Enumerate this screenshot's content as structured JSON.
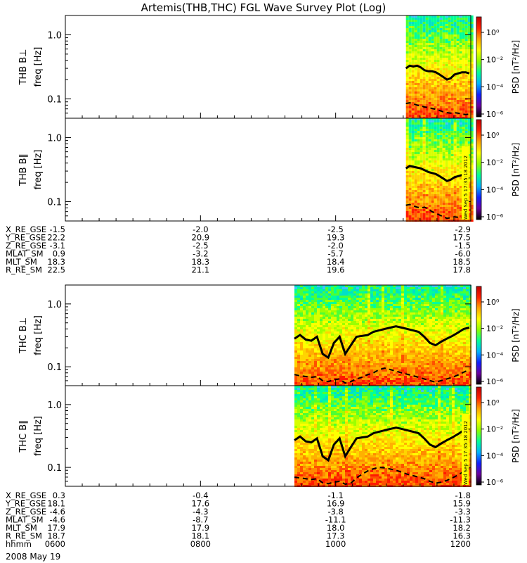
{
  "title": "Artemis(THB,THC) FGL Wave Survey Plot (Log)",
  "colors": {
    "panel_border": "#000000",
    "background": "#ffffff"
  },
  "colorbar": {
    "label": "PSD [nT²/Hz]",
    "ticks": [
      "10⁰",
      "10⁻²",
      "10⁻⁴",
      "10⁻⁶"
    ],
    "stops": [
      "#000000",
      "#6a00a0",
      "#1020ff",
      "#00b4ff",
      "#00ff9a",
      "#8cff00",
      "#ffff00",
      "#ffa500",
      "#ff2000",
      "#c00000"
    ]
  },
  "chart_data": [
    {
      "type": "heatmap",
      "id": "thb_bperp",
      "panel_label": "THB B⊥",
      "ylabel": "freq [Hz]",
      "yscale": "log",
      "ylim": [
        0.05,
        2.0
      ],
      "yticks": [
        "1.0",
        "0.1"
      ],
      "data_start_fraction": 0.84,
      "line_solid": [
        0.3,
        0.33,
        0.32,
        0.33,
        0.31,
        0.28,
        0.27,
        0.27,
        0.26,
        0.24,
        0.22,
        0.2,
        0.21,
        0.24,
        0.25,
        0.26,
        0.26,
        0.25
      ],
      "line_dashed": [
        0.085,
        0.087,
        0.084,
        0.08,
        0.078,
        0.075,
        0.073,
        0.071,
        0.069,
        0.066,
        0.063,
        0.061,
        0.06,
        0.061,
        0.06,
        0.058,
        0.057,
        0.058
      ]
    },
    {
      "type": "heatmap",
      "id": "thb_bpar",
      "panel_label": "THB B∥",
      "ylabel": "freq [Hz]",
      "yscale": "log",
      "ylim": [
        0.05,
        2.0
      ],
      "yticks": [
        "1.0",
        "0.1"
      ],
      "data_start_fraction": 0.84,
      "line_solid": [
        0.33,
        0.36,
        0.35,
        0.34,
        0.33,
        0.31,
        0.29,
        0.28,
        0.27,
        0.25,
        0.23,
        0.21,
        0.22,
        0.24,
        0.25,
        0.26,
        0.24,
        0.23
      ],
      "line_dashed": [
        0.088,
        0.09,
        0.086,
        0.082,
        0.08,
        0.082,
        0.076,
        0.07,
        0.066,
        0.062,
        0.058,
        0.055,
        0.056,
        0.058,
        0.057,
        0.056,
        0.058,
        0.06
      ],
      "stamp": "Wed Sep  5 17:35:18 2012"
    },
    {
      "type": "heatmap",
      "id": "thc_bperp",
      "panel_label": "THC B⊥",
      "ylabel": "freq [Hz]",
      "yscale": "log",
      "ylim": [
        0.05,
        2.0
      ],
      "yticks": [
        "1.0",
        "0.1"
      ],
      "data_start_fraction": 0.565,
      "line_solid": [
        0.28,
        0.32,
        0.27,
        0.26,
        0.3,
        0.16,
        0.14,
        0.24,
        0.3,
        0.16,
        0.22,
        0.3,
        0.31,
        0.32,
        0.36,
        0.38,
        0.4,
        0.42,
        0.44,
        0.42,
        0.4,
        0.38,
        0.36,
        0.3,
        0.24,
        0.22,
        0.25,
        0.28,
        0.31,
        0.35,
        0.4,
        0.42
      ],
      "line_dashed": [
        0.075,
        0.072,
        0.07,
        0.068,
        0.07,
        0.06,
        0.058,
        0.062,
        0.064,
        0.055,
        0.058,
        0.064,
        0.068,
        0.075,
        0.08,
        0.09,
        0.095,
        0.09,
        0.085,
        0.08,
        0.076,
        0.072,
        0.068,
        0.064,
        0.06,
        0.057,
        0.06,
        0.064,
        0.068,
        0.074,
        0.082,
        0.09
      ]
    },
    {
      "type": "heatmap",
      "id": "thc_bpar",
      "panel_label": "THC B∥",
      "ylabel": "freq [Hz]",
      "yscale": "log",
      "ylim": [
        0.05,
        2.0
      ],
      "yticks": [
        "1.0",
        "0.1"
      ],
      "data_start_fraction": 0.565,
      "line_solid": [
        0.27,
        0.31,
        0.26,
        0.25,
        0.29,
        0.15,
        0.13,
        0.23,
        0.29,
        0.15,
        0.21,
        0.29,
        0.3,
        0.31,
        0.35,
        0.37,
        0.39,
        0.41,
        0.43,
        0.41,
        0.39,
        0.37,
        0.35,
        0.29,
        0.23,
        0.21,
        0.24,
        0.27,
        0.3,
        0.34,
        0.39,
        0.41
      ],
      "line_dashed": [
        0.07,
        0.068,
        0.066,
        0.064,
        0.066,
        0.057,
        0.055,
        0.058,
        0.06,
        0.054,
        0.056,
        0.068,
        0.078,
        0.088,
        0.095,
        0.1,
        0.098,
        0.094,
        0.09,
        0.084,
        0.078,
        0.074,
        0.07,
        0.066,
        0.06,
        0.056,
        0.058,
        0.062,
        0.068,
        0.076,
        0.086,
        0.096
      ],
      "stamp": "Wed Sep  5 17:35:18 2012"
    }
  ],
  "orbit_tables": [
    {
      "id": "thb",
      "rows": [
        {
          "label": "X_RE_GSE",
          "values": [
            "-1.5",
            "-2.0",
            "-2.5",
            "-2.9"
          ]
        },
        {
          "label": "Y_RE_GSE",
          "values": [
            "22.2",
            "20.9",
            "19.3",
            "17.5"
          ]
        },
        {
          "label": "Z_RE_GSE",
          "values": [
            "-3.1",
            "-2.5",
            "-2.0",
            "-1.5"
          ]
        },
        {
          "label": "MLAT_SM",
          "values": [
            "0.9",
            "-3.2",
            "-5.7",
            "-6.0"
          ]
        },
        {
          "label": "MLT_SM",
          "values": [
            "18.3",
            "18.3",
            "18.4",
            "18.5"
          ]
        },
        {
          "label": "R_RE_SM",
          "values": [
            "22.5",
            "21.1",
            "19.6",
            "17.8"
          ]
        }
      ]
    },
    {
      "id": "thc",
      "rows": [
        {
          "label": "X_RE_GSE",
          "values": [
            "0.3",
            "-0.4",
            "-1.1",
            "-1.8"
          ]
        },
        {
          "label": "Y_RE_GSE",
          "values": [
            "18.1",
            "17.6",
            "16.9",
            "15.9"
          ]
        },
        {
          "label": "Z_RE_GSE",
          "values": [
            "-4.6",
            "-4.3",
            "-3.8",
            "-3.3"
          ]
        },
        {
          "label": "MLAT_SM",
          "values": [
            "-4.6",
            "-8.7",
            "-11.1",
            "-11.3"
          ]
        },
        {
          "label": "MLT_SM",
          "values": [
            "17.9",
            "17.9",
            "18.0",
            "18.2"
          ]
        },
        {
          "label": "R_RE_SM",
          "values": [
            "18.7",
            "18.1",
            "17.3",
            "16.3"
          ]
        },
        {
          "label": "hhmm",
          "values": [
            "0600",
            "0800",
            "1000",
            "1200"
          ]
        }
      ]
    }
  ],
  "date_label": "2008 May 19"
}
